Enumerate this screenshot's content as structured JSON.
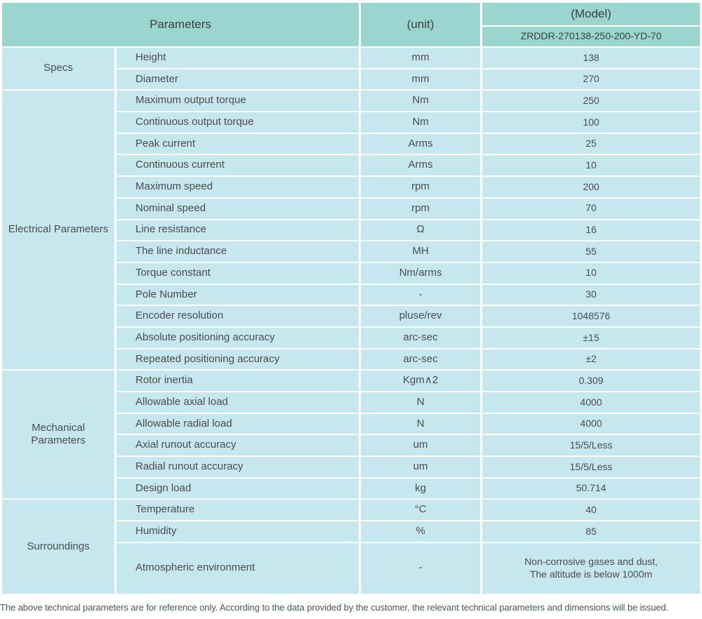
{
  "header": {
    "parameters_label": "Parameters",
    "unit_label": "(unit)",
    "model_label": "(Model)",
    "model_value": "ZRDDR-270138-250-200-YD-70"
  },
  "sections": [
    {
      "name": "Specs",
      "rows": [
        {
          "param": "Height",
          "unit": "mm",
          "value": "138"
        },
        {
          "param": "Diameter",
          "unit": "mm",
          "value": "270"
        }
      ]
    },
    {
      "name": "Electrical Parameters",
      "rows": [
        {
          "param": "Maximum output torque",
          "unit": "Nm",
          "value": "250"
        },
        {
          "param": "Continuous output torque",
          "unit": "Nm",
          "value": "100"
        },
        {
          "param": "Peak current",
          "unit": "Arms",
          "value": "25"
        },
        {
          "param": "Continuous current",
          "unit": "Arms",
          "value": "10"
        },
        {
          "param": "Maximum speed",
          "unit": "rpm",
          "value": "200"
        },
        {
          "param": "Nominal speed",
          "unit": "rpm",
          "value": "70"
        },
        {
          "param": "Line resistance",
          "unit": "Ω",
          "value": "16"
        },
        {
          "param": "The line inductance",
          "unit": "MH",
          "value": "55"
        },
        {
          "param": "Torque constant",
          "unit": "Nm/arms",
          "value": "10"
        },
        {
          "param": "Pole Number",
          "unit": "-",
          "value": "30"
        },
        {
          "param": "Encoder resolution",
          "unit": "pluse/rev",
          "value": "1048576"
        },
        {
          "param": "Absolute positioning accuracy",
          "unit": "arc-sec",
          "value": "±15"
        },
        {
          "param": "Repeated positioning accuracy",
          "unit": "arc-sec",
          "value": "±2"
        }
      ]
    },
    {
      "name": "Mechanical Parameters",
      "rows": [
        {
          "param": "Rotor inertia",
          "unit": "Kgm∧2",
          "value": "0.309"
        },
        {
          "param": "Allowable axial load",
          "unit": "N",
          "value": "4000"
        },
        {
          "param": "Allowable radial load",
          "unit": "N",
          "value": "4000"
        },
        {
          "param": "Axial runout accuracy",
          "unit": "um",
          "value": "15/5/Less"
        },
        {
          "param": "Radial runout accuracy",
          "unit": "um",
          "value": "15/5/Less"
        },
        {
          "param": "Design load",
          "unit": "kg",
          "value": "50.714"
        }
      ]
    },
    {
      "name": "Surroundings",
      "rows": [
        {
          "param": "Temperature",
          "unit": "°C",
          "value": "40"
        },
        {
          "param": "Humidity",
          "unit": "%",
          "value": "85"
        },
        {
          "param": "Atmospheric environment",
          "unit": "-",
          "value": "Non-corrosive gases and dust,\nThe altitude is below 1000m"
        }
      ]
    }
  ],
  "footnote": "The above technical parameters are for reference only. According to the data provided by the customer, the relevant technical parameters and dimensions will be issued.",
  "colors": {
    "header_bg": "#9ad5cf",
    "row_bg": "#c7e7ee",
    "body_text": "#4c4c4c",
    "footnote_text": "#3f5a5e"
  }
}
